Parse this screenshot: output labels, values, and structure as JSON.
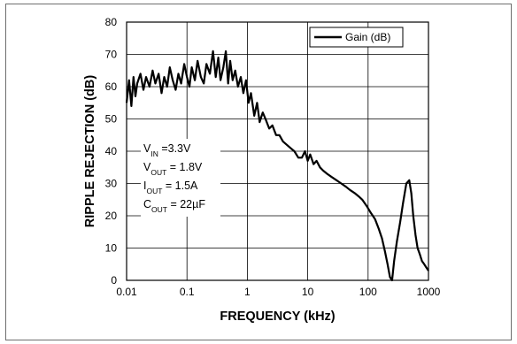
{
  "chart_data": {
    "type": "line",
    "xlabel": "FREQUENCY (kHz)",
    "ylabel": "RIPPLE REJECTION (dB)",
    "x_scale": "log",
    "xlim": [
      0.01,
      1000
    ],
    "ylim": [
      0,
      80
    ],
    "x_ticks": [
      {
        "value": 0.01,
        "label": "0.01"
      },
      {
        "value": 0.1,
        "label": "0.1"
      },
      {
        "value": 1,
        "label": "1"
      },
      {
        "value": 10,
        "label": "10"
      },
      {
        "value": 100,
        "label": "100"
      },
      {
        "value": 1000,
        "label": "1000"
      }
    ],
    "y_ticks": [
      {
        "value": 0,
        "label": "0"
      },
      {
        "value": 10,
        "label": "10"
      },
      {
        "value": 20,
        "label": "20"
      },
      {
        "value": 30,
        "label": "30"
      },
      {
        "value": 40,
        "label": "40"
      },
      {
        "value": 50,
        "label": "50"
      },
      {
        "value": 60,
        "label": "60"
      },
      {
        "value": 70,
        "label": "70"
      },
      {
        "value": 80,
        "label": "80"
      }
    ],
    "grid": true,
    "legend": {
      "placement": "top-right",
      "entries": [
        "Gain (dB)"
      ]
    },
    "annotations": [
      {
        "main": "V",
        "sub": "IN",
        "rest": " =3.3V"
      },
      {
        "main": "V",
        "sub": "OUT",
        "rest": " = 1.8V"
      },
      {
        "main": "I",
        "sub": "OUT",
        "rest": " = 1.5A"
      },
      {
        "main": "C",
        "sub": "OUT",
        "rest": " = 22µF"
      }
    ],
    "series": [
      {
        "name": "Gain (dB)",
        "color": "#000000",
        "x": [
          0.01,
          0.011,
          0.012,
          0.013,
          0.014,
          0.015,
          0.017,
          0.019,
          0.021,
          0.024,
          0.027,
          0.03,
          0.034,
          0.038,
          0.042,
          0.047,
          0.052,
          0.058,
          0.065,
          0.072,
          0.08,
          0.09,
          0.1,
          0.11,
          0.12,
          0.135,
          0.15,
          0.17,
          0.19,
          0.21,
          0.24,
          0.27,
          0.3,
          0.33,
          0.36,
          0.4,
          0.44,
          0.48,
          0.52,
          0.57,
          0.63,
          0.7,
          0.78,
          0.86,
          0.95,
          1.05,
          1.15,
          1.3,
          1.45,
          1.6,
          1.8,
          2.0,
          2.3,
          2.6,
          3.0,
          3.4,
          3.9,
          4.5,
          5.2,
          6.0,
          7.0,
          8.0,
          9.0,
          10.0,
          11.0,
          12.5,
          14.0,
          16.0,
          18.0,
          21.0,
          25.0,
          30.0,
          36.0,
          43.0,
          50.0,
          60.0,
          70.0,
          80.0,
          95.0,
          110.0,
          130.0,
          150.0,
          170.0,
          190.0,
          210.0,
          230.0,
          250.0,
          270.0,
          300.0,
          340.0,
          380.0,
          430.0,
          480.0,
          520.0,
          560.0,
          610.0,
          660.0,
          720.0,
          780.0,
          850.0,
          920.0,
          1000.0
        ],
        "y": [
          55,
          62,
          54,
          63,
          57,
          61,
          64,
          59,
          63,
          60,
          65,
          61,
          64,
          58,
          63,
          60,
          66,
          62,
          59,
          64,
          61,
          67,
          63,
          60,
          66,
          62,
          68,
          63,
          61,
          67,
          64,
          71,
          63,
          69,
          62,
          66,
          71,
          61,
          68,
          62,
          65,
          60,
          63,
          58,
          62,
          55,
          58,
          51,
          55,
          49,
          52,
          50,
          47,
          48,
          45,
          45,
          43,
          42,
          41,
          40,
          38,
          38,
          40,
          37,
          39,
          36,
          37,
          35,
          34,
          33,
          32,
          31,
          30,
          29,
          28,
          27,
          26,
          25,
          23,
          21,
          19,
          16,
          13,
          9,
          5,
          1,
          0,
          6,
          12,
          18,
          24,
          30,
          31,
          27,
          20,
          14,
          10,
          8,
          6,
          5,
          4,
          3
        ]
      }
    ]
  }
}
